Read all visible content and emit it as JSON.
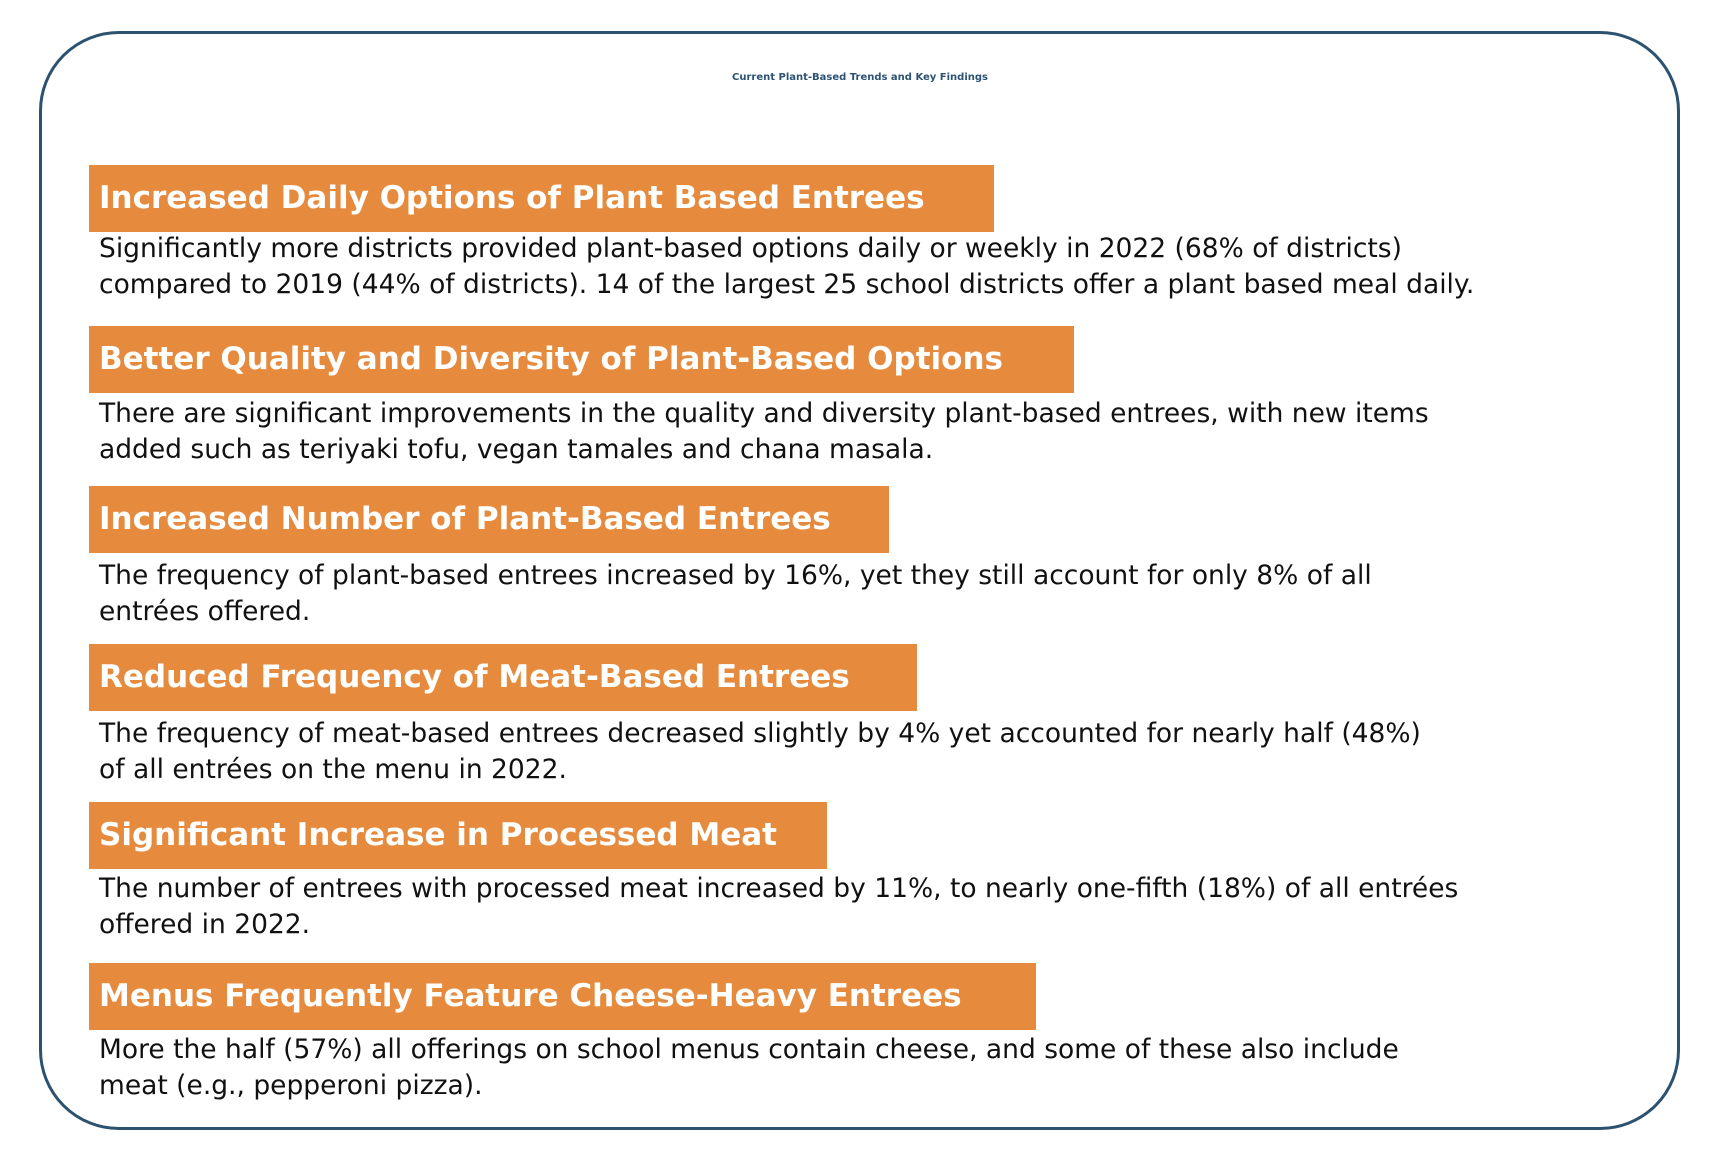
{
  "title": "Current Plant-Based Trends and Key Findings",
  "colors": {
    "accent": "#e68b3e",
    "title": "#2c5373",
    "border": "#2d5270"
  },
  "findings": [
    {
      "heading": "Increased Daily Options of Plant Based Entrees",
      "lines": [
        "Significantly more districts provided plant-based options daily or weekly in 2022 (68% of districts)",
        "compared to 2019 (44% of districts). 14 of the largest 25 school districts offer a plant based meal daily."
      ]
    },
    {
      "heading": "Better Quality and Diversity of Plant-Based Options",
      "lines": [
        "There are significant improvements in the quality and diversity plant-based entrees, with new items",
        "added such as teriyaki tofu, vegan tamales and chana masala."
      ]
    },
    {
      "heading": "Increased Number of Plant-Based Entrees",
      "lines": [
        "The frequency of plant-based entrees increased by 16%, yet they still account for only 8% of all",
        "entrées offered."
      ]
    },
    {
      "heading": "Reduced Frequency of Meat-Based Entrees",
      "lines": [
        "The frequency of meat-based entrees decreased slightly by 4% yet accounted for nearly half (48%)",
        "of all entrées on the menu in 2022."
      ]
    },
    {
      "heading": "Significant Increase in Processed Meat",
      "lines": [
        "The number of entrees with processed meat increased by 11%, to nearly one-fifth (18%) of all entrées",
        "offered in 2022."
      ]
    },
    {
      "heading": "Menus Frequently Feature Cheese-Heavy Entrees",
      "lines": [
        "More the half (57%) all offerings on school menus contain cheese, and some of these also include",
        "meat (e.g., pepperoni pizza)."
      ]
    }
  ]
}
